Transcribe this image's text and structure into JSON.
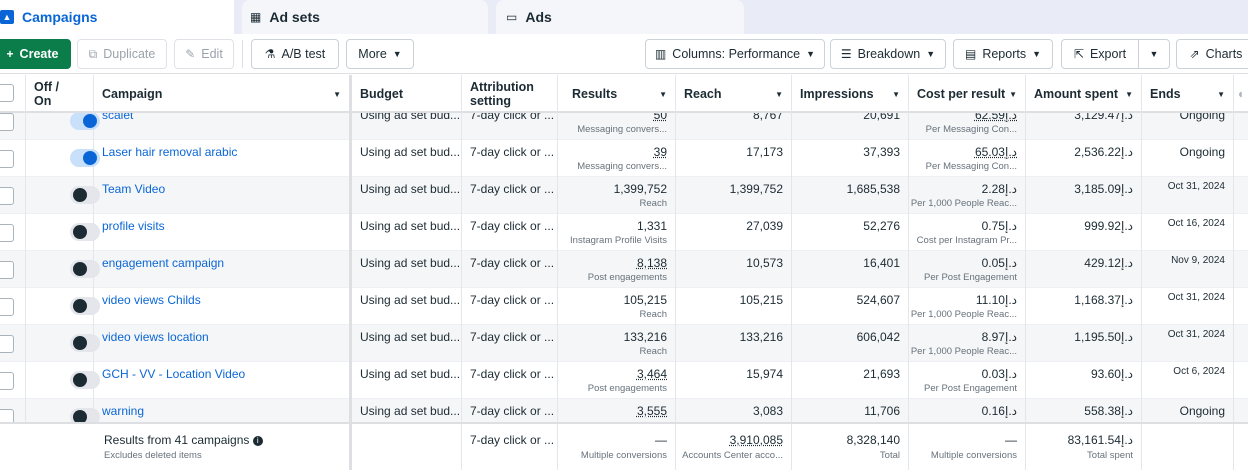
{
  "tabs": {
    "campaigns": "Campaigns",
    "adsets": "Ad sets",
    "ads": "Ads"
  },
  "toolbar": {
    "create": "Create",
    "duplicate": "Duplicate",
    "edit": "Edit",
    "ab_test": "A/B test",
    "more": "More",
    "columns": "Columns: Performance",
    "breakdown": "Breakdown",
    "reports": "Reports",
    "export": "Export",
    "charts": "Charts"
  },
  "columns": {
    "offon_line1": "Off /",
    "offon_line2": "On",
    "campaign": "Campaign",
    "budget": "Budget",
    "attribution_line1": "Attribution",
    "attribution_line2": "setting",
    "results": "Results",
    "reach": "Reach",
    "impressions": "Impressions",
    "cost_per_result": "Cost per result",
    "amount_spent": "Amount spent",
    "ends": "Ends"
  },
  "rows": [
    {
      "on": true,
      "campaign": "scalet",
      "budget": "Using ad set bud...",
      "attribution": "7-day click or ...",
      "results": "50",
      "results_sub": "Messaging convers...",
      "reach": "8,767",
      "impressions": "20,691",
      "cpr": "62.59د.إ",
      "cpr_sub": "Per Messaging Con...",
      "spent": "3,129.47د.إ",
      "ends": "Ongoing"
    },
    {
      "on": true,
      "campaign": "Laser hair removal arabic",
      "budget": "Using ad set bud...",
      "attribution": "7-day click or ...",
      "results": "39",
      "results_sub": "Messaging convers...",
      "reach": "17,173",
      "impressions": "37,393",
      "cpr": "65.03د.إ",
      "cpr_sub": "Per Messaging Con...",
      "spent": "2,536.22د.إ",
      "ends": "Ongoing"
    },
    {
      "on": false,
      "campaign": "Team Video",
      "budget": "Using ad set bud...",
      "attribution": "7-day click or ...",
      "results": "1,399,752",
      "results_sub": "Reach",
      "reach": "1,399,752",
      "impressions": "1,685,538",
      "cpr": "2.28د.إ",
      "cpr_sub": "Per 1,000 People Reac...",
      "spent": "3,185.09د.إ",
      "ends": "Oct 31, 2024"
    },
    {
      "on": false,
      "campaign": "profile visits",
      "budget": "Using ad set bud...",
      "attribution": "7-day click or ...",
      "results": "1,331",
      "results_sub": "Instagram Profile Visits",
      "reach": "27,039",
      "impressions": "52,276",
      "cpr": "0.75د.إ",
      "cpr_sub": "Cost per Instagram Pr...",
      "spent": "999.92د.إ",
      "ends": "Oct 16, 2024"
    },
    {
      "on": false,
      "campaign": "engagement campaign",
      "budget": "Using ad set bud...",
      "attribution": "7-day click or ...",
      "results": "8,138",
      "results_sub": "Post engagements",
      "reach": "10,573",
      "impressions": "16,401",
      "cpr": "0.05د.إ",
      "cpr_sub": "Per Post Engagement",
      "spent": "429.12د.إ",
      "ends": "Nov 9, 2024"
    },
    {
      "on": false,
      "campaign": "video views Childs",
      "budget": "Using ad set bud...",
      "attribution": "7-day click or ...",
      "results": "105,215",
      "results_sub": "Reach",
      "reach": "105,215",
      "impressions": "524,607",
      "cpr": "11.10د.إ",
      "cpr_sub": "Per 1,000 People Reac...",
      "spent": "1,168.37د.إ",
      "ends": "Oct 31, 2024"
    },
    {
      "on": false,
      "campaign": "video views location",
      "budget": "Using ad set bud...",
      "attribution": "7-day click or ...",
      "results": "133,216",
      "results_sub": "Reach",
      "reach": "133,216",
      "impressions": "606,042",
      "cpr": "8.97د.إ",
      "cpr_sub": "Per 1,000 People Reac...",
      "spent": "1,195.50د.إ",
      "ends": "Oct 31, 2024"
    },
    {
      "on": false,
      "campaign": "GCH - VV - Location Video",
      "budget": "Using ad set bud...",
      "attribution": "7-day click or ...",
      "results": "3,464",
      "results_sub": "Post engagements",
      "reach": "15,974",
      "impressions": "21,693",
      "cpr": "0.03د.إ",
      "cpr_sub": "Per Post Engagement",
      "spent": "93.60د.إ",
      "ends": "Oct 6, 2024"
    },
    {
      "on": false,
      "campaign": "warning",
      "budget": "Using ad set bud...",
      "attribution": "7-day click or ...",
      "results": "3,555",
      "results_sub": "",
      "reach": "3,083",
      "impressions": "11,706",
      "cpr": "0.16د.إ",
      "cpr_sub": "",
      "spent": "558.38د.إ",
      "ends": "Ongoing"
    }
  ],
  "footer": {
    "label": "Results from 41 campaigns",
    "sublabel": "Excludes deleted items",
    "attribution": "7-day click or ...",
    "results": "—",
    "results_sub": "Multiple conversions",
    "reach": "3,910,085",
    "reach_sub": "Accounts Center acco...",
    "impressions": "8,328,140",
    "impressions_sub": "Total",
    "cpr": "—",
    "cpr_sub": "Multiple conversions",
    "spent": "83,161.54د.إ",
    "spent_sub": "Total spent"
  },
  "colors": {
    "accent": "#0a66d6",
    "create_button": "#0b7d4b",
    "toggle_on": "#0a66d6",
    "toggle_off_knob": "#1c2b33"
  }
}
